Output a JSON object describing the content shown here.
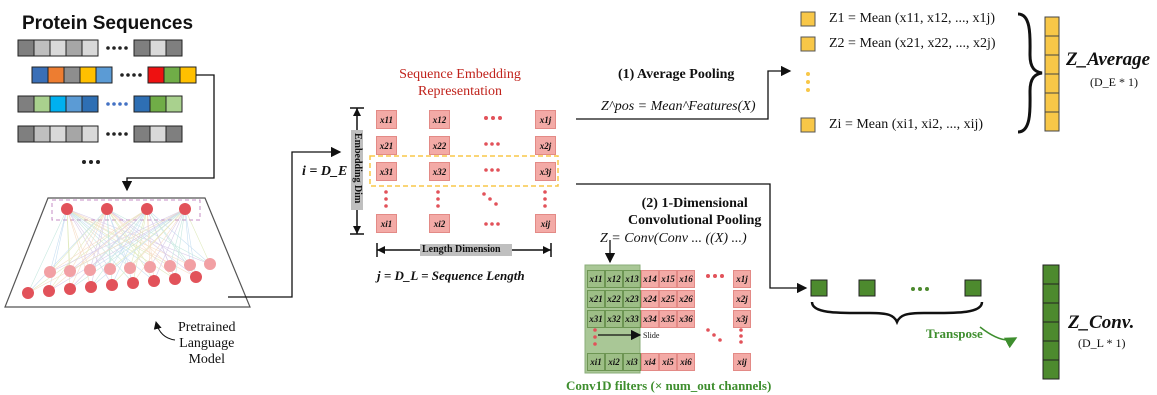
{
  "title": "Protein Sequences",
  "model_label": [
    "Pretrained",
    "Language",
    "Model"
  ],
  "embedding": {
    "title_line1": "Sequence Embedding",
    "title_line2": "Representation",
    "i_label": "i = D_E",
    "j_label": "j = D_L = Sequence Length",
    "dim_label": "Embedding Dim",
    "length_label": "Length Dimension",
    "cells": [
      "x11",
      "x12",
      "x1j",
      "x21",
      "x22",
      "x2j",
      "x31",
      "x32",
      "x3j",
      "xi1",
      "xi2",
      "xij"
    ]
  },
  "avg_pool": {
    "heading": "(1) Average Pooling",
    "formula": "Z^pos = Mean^Features(X)",
    "z1": "Z1 = Mean (x11, x12, ..., x1j)",
    "z2": "Z2 = Mean (x21, x22, ..., x2j)",
    "zi": "Zi = Mean (xi1, xi2, ..., xij)",
    "output": "Z_Average",
    "output_dim": "(D_E * 1)"
  },
  "conv_pool": {
    "heading_line1": "(2) 1-Dimensional",
    "heading_line2": "Convolutional Pooling",
    "formula": "Z = Conv(Conv ... ((X) ...)",
    "slide_label": "Slide",
    "filters_label": "Conv1D filters (× num_out channels)",
    "transpose_label": "Transpose",
    "output": "Z_Conv.",
    "output_dim": "(D_L * 1)"
  },
  "colors": {
    "seq_gray": "#a6a6a6",
    "cell_pink": "#f3aaa6",
    "node_red": "#e2525a",
    "yellow": "#f8c748",
    "green": "#4d8a2e",
    "filter_green": "#86b06a"
  }
}
